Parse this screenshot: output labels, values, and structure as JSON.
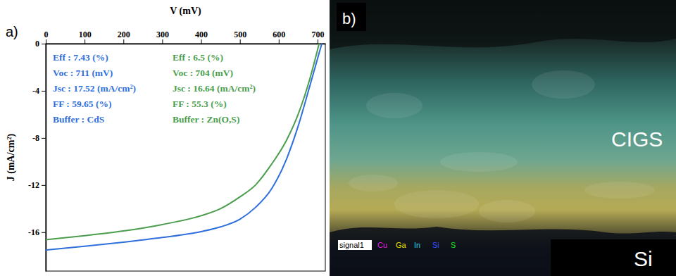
{
  "chart_data": {
    "type": "line",
    "label": "a)",
    "x_label": "V (mV)",
    "y_label": "J (mA/cm²)",
    "x": [
      0,
      100,
      200,
      300,
      400,
      450,
      500,
      540,
      580,
      620,
      650,
      680,
      704,
      711
    ],
    "series": [
      {
        "color": "#2f6fdc",
        "values": [
          -17.52,
          -17.2,
          -16.85,
          -16.45,
          -15.95,
          -15.55,
          -14.9,
          -13.9,
          -12.4,
          -9.8,
          -7.0,
          -3.6,
          -0.8,
          0
        ]
      },
      {
        "color": "#4a9e4e",
        "values": [
          -16.64,
          -16.3,
          -15.9,
          -15.35,
          -14.6,
          -14.0,
          -13.0,
          -12.0,
          -10.3,
          -8.2,
          -6.0,
          -3.0,
          0,
          null
        ]
      }
    ],
    "annotations": [
      [
        "Eff : 7.43 (%)",
        "Voc : 711 (mV)",
        "Jsc : 17.52 (mA/cm²)",
        "FF : 59.65 (%)",
        "Buffer : CdS"
      ],
      [
        "Eff : 6.5 (%)",
        "Voc : 704 (mV)",
        "Jsc : 16.64 (mA/cm²)",
        "FF : 55.3 (%)",
        "Buffer : Zn(O,S)"
      ]
    ],
    "xlim": [
      0,
      720
    ],
    "ylim": [
      -19.3,
      0
    ],
    "xticks": [
      0,
      100,
      200,
      300,
      400,
      500,
      600,
      700
    ],
    "yticks": [
      0,
      -4,
      -8,
      -12,
      -16
    ],
    "grid": false
  },
  "image_panel": {
    "label": "b)",
    "layer_labels": [
      "CIGS",
      "Si"
    ],
    "legend": [
      {
        "text": "signal1",
        "color": "#ffffff"
      },
      {
        "text": "Cu",
        "color": "#e020e0"
      },
      {
        "text": "Ga",
        "color": "#e8e000"
      },
      {
        "text": "In",
        "color": "#20d0e8"
      },
      {
        "text": "Si",
        "color": "#3050ff"
      },
      {
        "text": "S",
        "color": "#20e020"
      }
    ]
  }
}
